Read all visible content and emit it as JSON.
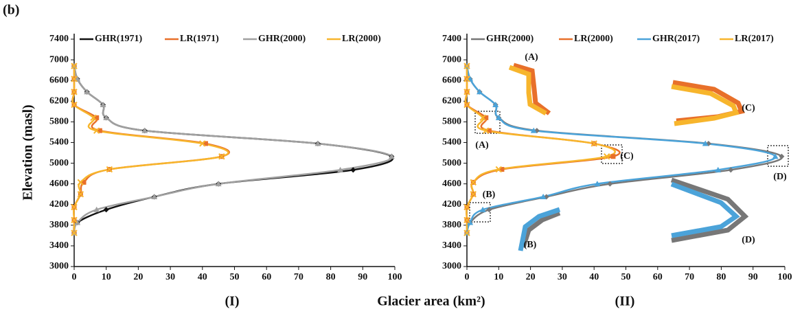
{
  "figure_label": "(b)",
  "ylabel": "Elevation (masl)",
  "xlabel": "Glacier area (km²)",
  "chart_data": [
    {
      "type": "line",
      "title": "(I)",
      "xlim": [
        0,
        100
      ],
      "ylim": [
        3000,
        7400
      ],
      "xticks": [
        0,
        10,
        20,
        30,
        40,
        50,
        60,
        70,
        80,
        90,
        100
      ],
      "yticks": [
        3000,
        3400,
        3800,
        4200,
        4600,
        5000,
        5400,
        5800,
        6200,
        6600,
        7000,
        7400
      ],
      "series": [
        {
          "name": "GHR(1971)",
          "color": "#111111",
          "marker": "diamond",
          "x": [
            0,
            1,
            10,
            25,
            45,
            87,
            99,
            76,
            22,
            10,
            9,
            4,
            1,
            0
          ],
          "values": [
            3650,
            3850,
            4100,
            4350,
            4600,
            4870,
            5130,
            5380,
            5630,
            5880,
            6130,
            6380,
            6630,
            6880
          ]
        },
        {
          "name": "LR(1971)",
          "color": "#e8702a",
          "marker": "square",
          "x": [
            0,
            0,
            0,
            2,
            3,
            11,
            46,
            41,
            8,
            7,
            0,
            0,
            0,
            0
          ],
          "values": [
            3650,
            3900,
            4150,
            4400,
            4630,
            4880,
            5130,
            5380,
            5630,
            5880,
            6130,
            6380,
            6630,
            6880
          ]
        },
        {
          "name": "GHR(2000)",
          "color": "#a0a0a0",
          "marker": "triangle",
          "x": [
            0,
            1,
            7,
            25,
            45,
            83,
            99,
            76,
            22,
            10,
            9,
            4,
            1,
            0
          ],
          "values": [
            3650,
            3850,
            4100,
            4350,
            4600,
            4870,
            5130,
            5380,
            5630,
            5880,
            6130,
            6380,
            6630,
            6880
          ]
        },
        {
          "name": "LR(2000)",
          "color": "#f7b52c",
          "marker": "x",
          "x": [
            0,
            0,
            0,
            2,
            2,
            11,
            46,
            40,
            7,
            6,
            0,
            0,
            0,
            0
          ],
          "values": [
            3650,
            3900,
            4150,
            4400,
            4630,
            4880,
            5130,
            5380,
            5630,
            5880,
            6130,
            6380,
            6630,
            6880
          ]
        }
      ]
    },
    {
      "type": "line",
      "title": "(II)",
      "xlim": [
        0,
        100
      ],
      "ylim": [
        3000,
        7400
      ],
      "xticks": [
        0,
        10,
        20,
        30,
        40,
        50,
        60,
        70,
        80,
        90,
        100
      ],
      "yticks": [
        3000,
        3400,
        3800,
        4200,
        4600,
        5000,
        5400,
        5800,
        6200,
        6600,
        7000,
        7400
      ],
      "series": [
        {
          "name": "GHR(2000)",
          "color": "#777777",
          "marker": "diamond",
          "x": [
            0,
            1,
            7,
            25,
            45,
            83,
            99,
            76,
            22,
            10,
            9,
            4,
            1,
            0
          ],
          "values": [
            3650,
            3850,
            4100,
            4350,
            4600,
            4870,
            5130,
            5380,
            5630,
            5880,
            6130,
            6380,
            6630,
            6880
          ]
        },
        {
          "name": "LR(2000)",
          "color": "#e8702a",
          "marker": "square",
          "x": [
            0,
            0,
            0,
            2,
            2,
            11,
            46,
            40,
            7,
            6,
            0,
            0,
            0,
            0
          ],
          "values": [
            3650,
            3900,
            4150,
            4400,
            4630,
            4880,
            5130,
            5380,
            5630,
            5880,
            6130,
            6380,
            6630,
            6880
          ]
        },
        {
          "name": "GHR(2017)",
          "color": "#4ba3d9",
          "marker": "triangle",
          "x": [
            0,
            1,
            5,
            24,
            41,
            79,
            97,
            75,
            21,
            10,
            9,
            4,
            1,
            0
          ],
          "values": [
            3650,
            3850,
            4100,
            4350,
            4600,
            4870,
            5130,
            5380,
            5630,
            5880,
            6130,
            6380,
            6630,
            6880
          ]
        },
        {
          "name": "LR(2017)",
          "color": "#f7b52c",
          "marker": "x",
          "x": [
            0,
            0,
            0,
            2,
            2,
            10,
            44,
            40,
            6,
            5,
            0,
            0,
            0,
            0
          ],
          "values": [
            3650,
            3900,
            4150,
            4400,
            4630,
            4880,
            5130,
            5380,
            5630,
            5880,
            6130,
            6380,
            6630,
            6880
          ]
        }
      ],
      "annotations": [
        "(A)",
        "(A)",
        "(B)",
        "(B)",
        "(C)",
        "(C)",
        "(D)",
        "(D)"
      ]
    }
  ]
}
